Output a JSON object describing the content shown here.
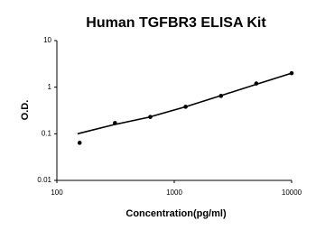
{
  "chart_data": {
    "type": "scatter",
    "title": "Human TGFBR3 ELISA Kit",
    "x_label": "Concentration(pg/ml)",
    "y_label": "O.D.",
    "x_scale": "log",
    "y_scale": "log",
    "xlim": [
      100,
      10000
    ],
    "xticks": [
      100,
      1000,
      10000
    ],
    "ylim": [
      0.01,
      10
    ],
    "yticks": [
      0.01,
      0.1,
      1,
      10
    ],
    "grid": false,
    "series": [
      {
        "mode": "markers",
        "color": "#000000",
        "x": [
          156.25,
          312.5,
          625,
          1250,
          2500,
          5000,
          10000
        ],
        "values": [
          0.064,
          0.17,
          0.23,
          0.38,
          0.65,
          1.2,
          2.0
        ]
      },
      {
        "mode": "line",
        "color": "#000000",
        "x": [
          150,
          300,
          600,
          1250,
          2500,
          5000,
          10000
        ],
        "values": [
          0.1,
          0.155,
          0.225,
          0.38,
          0.66,
          1.15,
          2.0
        ]
      }
    ]
  }
}
